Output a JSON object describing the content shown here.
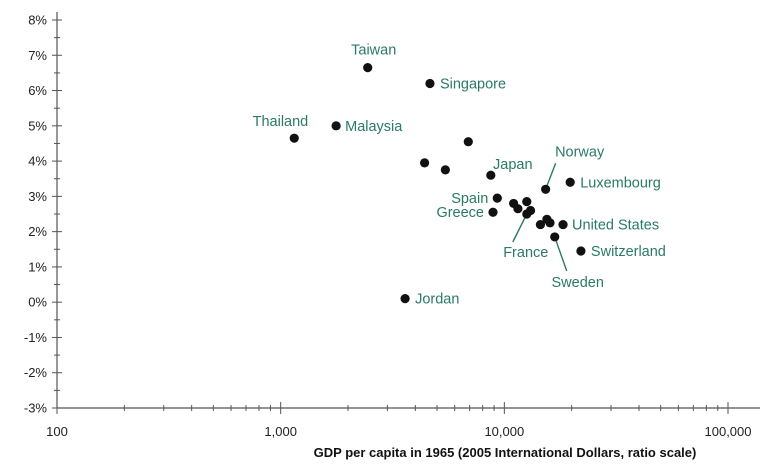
{
  "chart_data": {
    "type": "scatter",
    "xlabel": "GDP per capita in 1965 (2005 International Dollars, ratio scale)",
    "ylabel": "",
    "x_scale": "log",
    "xlim": [
      100,
      150000
    ],
    "ylim": [
      -3,
      8.5
    ],
    "x_ticks": [
      100,
      1000,
      10000,
      100000
    ],
    "x_tick_labels": [
      "100",
      "1,000",
      "10,000",
      "100,000"
    ],
    "y_ticks": [
      -3,
      -2,
      -1,
      0,
      1,
      2,
      3,
      4,
      5,
      6,
      7,
      8
    ],
    "y_tick_labels": [
      "-3%",
      "-2%",
      "-1%",
      "0%",
      "1%",
      "2%",
      "3%",
      "4%",
      "5%",
      "6%",
      "7%",
      "8%"
    ],
    "grid": false,
    "colors": {
      "point": "#111111",
      "label": "#2a7a66",
      "leader": "#2a7a66"
    },
    "points": [
      {
        "name": "Taiwan",
        "x": 2450,
        "y": 6.65
      },
      {
        "name": "Singapore",
        "x": 4650,
        "y": 6.2
      },
      {
        "name": "Malaysia",
        "x": 1770,
        "y": 5.0
      },
      {
        "name": "Thailand",
        "x": 1150,
        "y": 4.65
      },
      {
        "name": "",
        "x": 6900,
        "y": 4.55
      },
      {
        "name": "",
        "x": 4400,
        "y": 3.95
      },
      {
        "name": "",
        "x": 5450,
        "y": 3.75
      },
      {
        "name": "Japan",
        "x": 8700,
        "y": 3.6
      },
      {
        "name": "Norway",
        "x": 15300,
        "y": 3.2
      },
      {
        "name": "Luxembourg",
        "x": 19700,
        "y": 3.4
      },
      {
        "name": "Spain",
        "x": 9300,
        "y": 2.95
      },
      {
        "name": "Greece",
        "x": 8900,
        "y": 2.55
      },
      {
        "name": "",
        "x": 11000,
        "y": 2.8
      },
      {
        "name": "",
        "x": 11500,
        "y": 2.65
      },
      {
        "name": "",
        "x": 12600,
        "y": 2.85
      },
      {
        "name": "France",
        "x": 12600,
        "y": 2.5
      },
      {
        "name": "",
        "x": 13100,
        "y": 2.6
      },
      {
        "name": "",
        "x": 14500,
        "y": 2.2
      },
      {
        "name": "",
        "x": 15500,
        "y": 2.35
      },
      {
        "name": "",
        "x": 16000,
        "y": 2.25
      },
      {
        "name": "United States",
        "x": 18300,
        "y": 2.2
      },
      {
        "name": "Sweden",
        "x": 16800,
        "y": 1.85
      },
      {
        "name": "Switzerland",
        "x": 22000,
        "y": 1.45
      },
      {
        "name": "Jordan",
        "x": 3600,
        "y": 0.1
      }
    ]
  }
}
